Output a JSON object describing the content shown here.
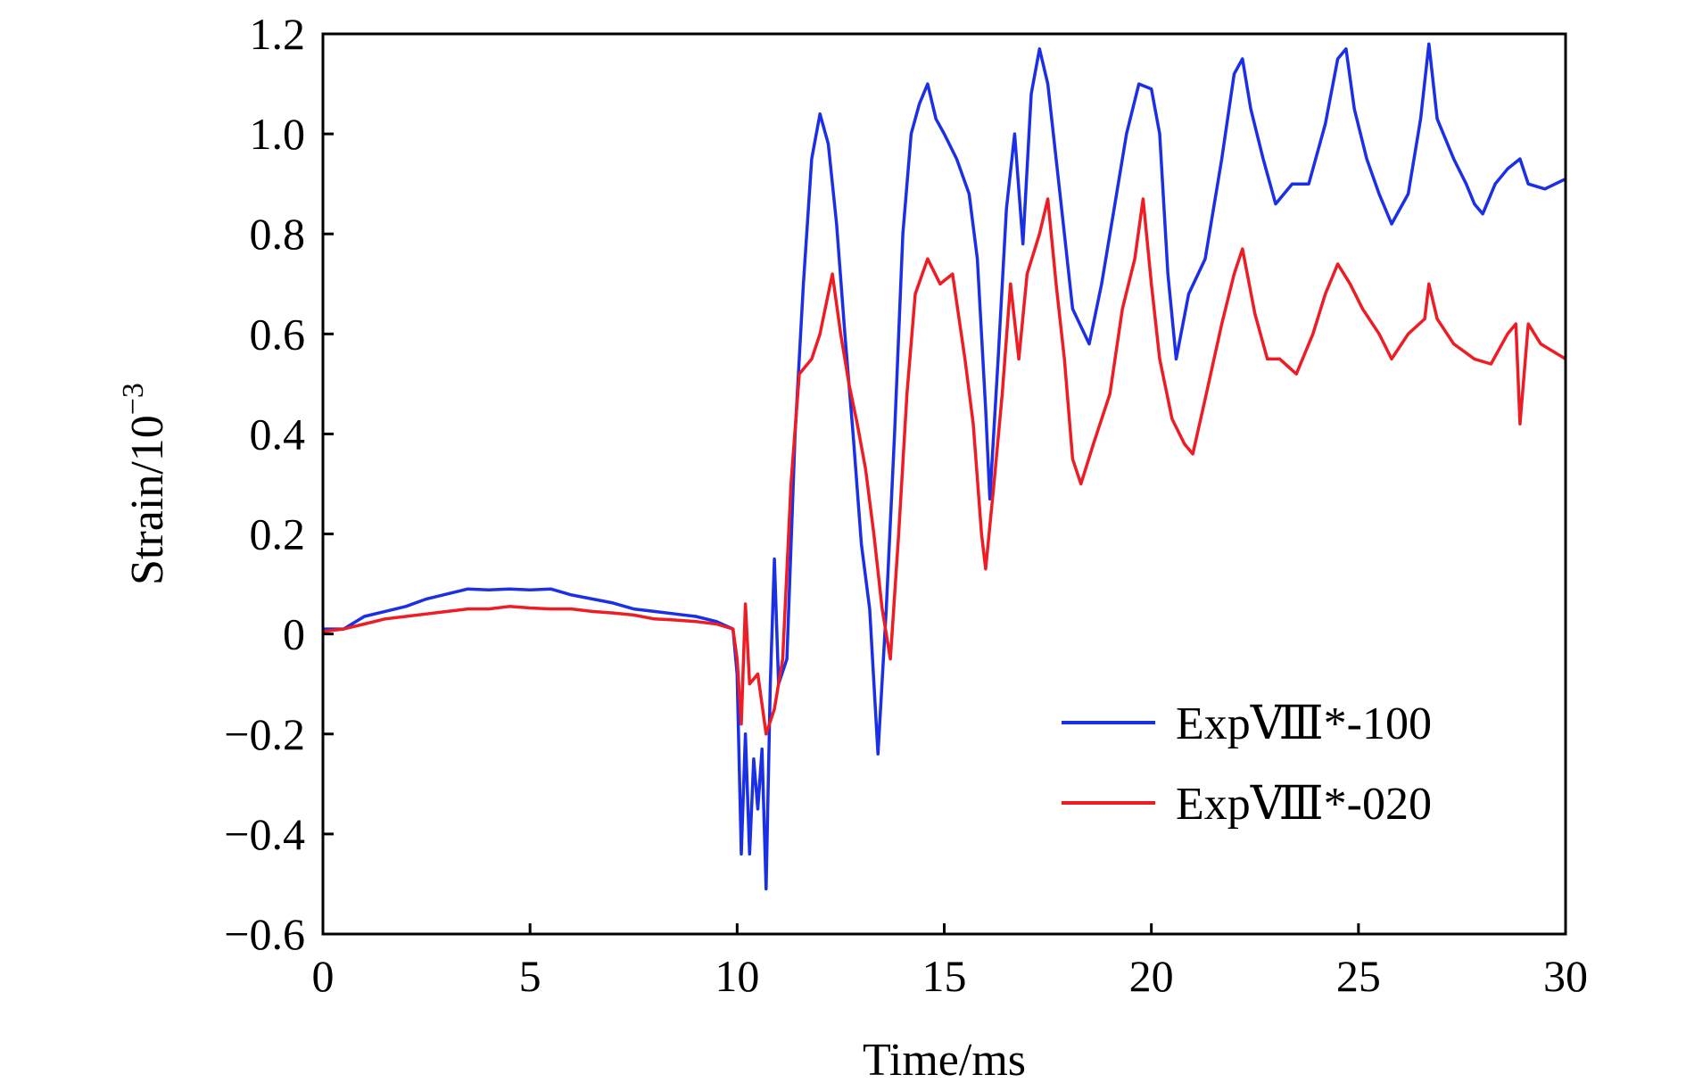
{
  "chart_data": {
    "type": "line",
    "title": "",
    "xlabel": "Time/ms",
    "ylabel": {
      "text": "Strain/10",
      "superscript": "−3"
    },
    "xlim": [
      0,
      30
    ],
    "ylim": [
      -0.6,
      1.2
    ],
    "xticks": [
      0,
      5,
      10,
      15,
      20,
      25,
      30
    ],
    "xtick_labels": [
      "0",
      "5",
      "10",
      "15",
      "20",
      "25",
      "30"
    ],
    "yticks": [
      -0.6,
      -0.4,
      -0.2,
      0,
      0.2,
      0.4,
      0.6,
      0.8,
      1.0,
      1.2
    ],
    "ytick_labels": [
      "−0.6",
      "−0.4",
      "−0.2",
      "0",
      "0.2",
      "0.4",
      "0.6",
      "0.8",
      "1.0",
      "1.2"
    ],
    "grid": false,
    "legend_position": "lower-right",
    "series": [
      {
        "name": "ExpⅧ*-100",
        "color": "#1a2fe6",
        "points": [
          [
            0,
            0.01
          ],
          [
            0.5,
            0.01
          ],
          [
            1,
            0.035
          ],
          [
            1.5,
            0.045
          ],
          [
            2,
            0.055
          ],
          [
            2.5,
            0.07
          ],
          [
            3,
            0.08
          ],
          [
            3.5,
            0.09
          ],
          [
            4,
            0.088
          ],
          [
            4.5,
            0.09
          ],
          [
            5,
            0.088
          ],
          [
            5.5,
            0.09
          ],
          [
            6,
            0.078
          ],
          [
            6.5,
            0.07
          ],
          [
            7,
            0.062
          ],
          [
            7.5,
            0.05
          ],
          [
            8,
            0.045
          ],
          [
            8.5,
            0.04
          ],
          [
            9,
            0.035
          ],
          [
            9.5,
            0.025
          ],
          [
            9.9,
            0.01
          ],
          [
            10.0,
            -0.08
          ],
          [
            10.1,
            -0.44
          ],
          [
            10.2,
            -0.2
          ],
          [
            10.3,
            -0.44
          ],
          [
            10.4,
            -0.25
          ],
          [
            10.5,
            -0.35
          ],
          [
            10.6,
            -0.23
          ],
          [
            10.7,
            -0.51
          ],
          [
            10.8,
            -0.1
          ],
          [
            10.9,
            0.15
          ],
          [
            11.0,
            -0.1
          ],
          [
            11.2,
            -0.05
          ],
          [
            11.4,
            0.4
          ],
          [
            11.6,
            0.7
          ],
          [
            11.8,
            0.95
          ],
          [
            12.0,
            1.04
          ],
          [
            12.2,
            0.98
          ],
          [
            12.4,
            0.82
          ],
          [
            12.6,
            0.6
          ],
          [
            12.8,
            0.4
          ],
          [
            13.0,
            0.18
          ],
          [
            13.2,
            0.05
          ],
          [
            13.4,
            -0.24
          ],
          [
            13.6,
            0.05
          ],
          [
            13.8,
            0.4
          ],
          [
            14.0,
            0.8
          ],
          [
            14.2,
            1.0
          ],
          [
            14.4,
            1.06
          ],
          [
            14.6,
            1.1
          ],
          [
            14.8,
            1.03
          ],
          [
            15.0,
            1.0
          ],
          [
            15.3,
            0.95
          ],
          [
            15.6,
            0.88
          ],
          [
            15.8,
            0.75
          ],
          [
            16.0,
            0.45
          ],
          [
            16.1,
            0.27
          ],
          [
            16.3,
            0.55
          ],
          [
            16.5,
            0.85
          ],
          [
            16.7,
            1.0
          ],
          [
            16.9,
            0.78
          ],
          [
            17.1,
            1.08
          ],
          [
            17.3,
            1.17
          ],
          [
            17.5,
            1.1
          ],
          [
            17.7,
            0.95
          ],
          [
            17.9,
            0.8
          ],
          [
            18.1,
            0.65
          ],
          [
            18.5,
            0.58
          ],
          [
            18.8,
            0.7
          ],
          [
            19.1,
            0.85
          ],
          [
            19.4,
            1.0
          ],
          [
            19.7,
            1.1
          ],
          [
            20.0,
            1.09
          ],
          [
            20.2,
            1.0
          ],
          [
            20.4,
            0.72
          ],
          [
            20.6,
            0.55
          ],
          [
            20.9,
            0.68
          ],
          [
            21.3,
            0.75
          ],
          [
            21.7,
            0.95
          ],
          [
            22.0,
            1.12
          ],
          [
            22.2,
            1.15
          ],
          [
            22.4,
            1.05
          ],
          [
            22.7,
            0.95
          ],
          [
            23.0,
            0.86
          ],
          [
            23.4,
            0.9
          ],
          [
            23.8,
            0.9
          ],
          [
            24.2,
            1.02
          ],
          [
            24.5,
            1.15
          ],
          [
            24.7,
            1.17
          ],
          [
            24.9,
            1.05
          ],
          [
            25.2,
            0.95
          ],
          [
            25.5,
            0.88
          ],
          [
            25.8,
            0.82
          ],
          [
            26.2,
            0.88
          ],
          [
            26.5,
            1.03
          ],
          [
            26.7,
            1.18
          ],
          [
            26.9,
            1.03
          ],
          [
            27.3,
            0.95
          ],
          [
            27.6,
            0.9
          ],
          [
            27.8,
            0.86
          ],
          [
            28.0,
            0.84
          ],
          [
            28.3,
            0.9
          ],
          [
            28.6,
            0.93
          ],
          [
            28.9,
            0.95
          ],
          [
            29.1,
            0.9
          ],
          [
            29.5,
            0.89
          ],
          [
            30.0,
            0.91
          ]
        ]
      },
      {
        "name": "ExpⅧ*-020",
        "color": "#ee1c24",
        "points": [
          [
            0,
            0.005
          ],
          [
            0.5,
            0.01
          ],
          [
            1,
            0.02
          ],
          [
            1.5,
            0.03
          ],
          [
            2,
            0.035
          ],
          [
            2.5,
            0.04
          ],
          [
            3,
            0.045
          ],
          [
            3.5,
            0.05
          ],
          [
            4,
            0.05
          ],
          [
            4.5,
            0.055
          ],
          [
            5,
            0.052
          ],
          [
            5.5,
            0.05
          ],
          [
            6,
            0.05
          ],
          [
            6.5,
            0.045
          ],
          [
            7,
            0.042
          ],
          [
            7.5,
            0.038
          ],
          [
            8,
            0.03
          ],
          [
            8.5,
            0.028
          ],
          [
            9,
            0.025
          ],
          [
            9.5,
            0.02
          ],
          [
            9.9,
            0.01
          ],
          [
            10.0,
            -0.05
          ],
          [
            10.1,
            -0.18
          ],
          [
            10.2,
            0.06
          ],
          [
            10.3,
            -0.1
          ],
          [
            10.5,
            -0.08
          ],
          [
            10.7,
            -0.2
          ],
          [
            10.9,
            -0.15
          ],
          [
            11.1,
            -0.05
          ],
          [
            11.3,
            0.3
          ],
          [
            11.5,
            0.52
          ],
          [
            11.8,
            0.55
          ],
          [
            12.0,
            0.6
          ],
          [
            12.3,
            0.72
          ],
          [
            12.5,
            0.6
          ],
          [
            12.7,
            0.5
          ],
          [
            12.9,
            0.42
          ],
          [
            13.1,
            0.33
          ],
          [
            13.3,
            0.2
          ],
          [
            13.5,
            0.05
          ],
          [
            13.7,
            -0.05
          ],
          [
            13.9,
            0.2
          ],
          [
            14.1,
            0.48
          ],
          [
            14.3,
            0.68
          ],
          [
            14.6,
            0.75
          ],
          [
            14.9,
            0.7
          ],
          [
            15.2,
            0.72
          ],
          [
            15.5,
            0.55
          ],
          [
            15.7,
            0.42
          ],
          [
            15.9,
            0.2
          ],
          [
            16.0,
            0.13
          ],
          [
            16.2,
            0.3
          ],
          [
            16.4,
            0.48
          ],
          [
            16.6,
            0.7
          ],
          [
            16.8,
            0.55
          ],
          [
            17.0,
            0.72
          ],
          [
            17.3,
            0.8
          ],
          [
            17.5,
            0.87
          ],
          [
            17.7,
            0.7
          ],
          [
            17.9,
            0.55
          ],
          [
            18.1,
            0.35
          ],
          [
            18.3,
            0.3
          ],
          [
            18.6,
            0.38
          ],
          [
            19.0,
            0.48
          ],
          [
            19.3,
            0.65
          ],
          [
            19.6,
            0.75
          ],
          [
            19.8,
            0.87
          ],
          [
            20.0,
            0.7
          ],
          [
            20.2,
            0.55
          ],
          [
            20.5,
            0.43
          ],
          [
            20.8,
            0.38
          ],
          [
            21.0,
            0.36
          ],
          [
            21.3,
            0.47
          ],
          [
            21.7,
            0.62
          ],
          [
            22.0,
            0.72
          ],
          [
            22.2,
            0.77
          ],
          [
            22.5,
            0.64
          ],
          [
            22.8,
            0.55
          ],
          [
            23.1,
            0.55
          ],
          [
            23.5,
            0.52
          ],
          [
            23.9,
            0.6
          ],
          [
            24.2,
            0.68
          ],
          [
            24.5,
            0.74
          ],
          [
            24.8,
            0.7
          ],
          [
            25.1,
            0.65
          ],
          [
            25.5,
            0.6
          ],
          [
            25.8,
            0.55
          ],
          [
            26.2,
            0.6
          ],
          [
            26.6,
            0.63
          ],
          [
            26.7,
            0.7
          ],
          [
            26.9,
            0.63
          ],
          [
            27.3,
            0.58
          ],
          [
            27.8,
            0.55
          ],
          [
            28.2,
            0.54
          ],
          [
            28.6,
            0.6
          ],
          [
            28.8,
            0.62
          ],
          [
            28.9,
            0.42
          ],
          [
            29.1,
            0.62
          ],
          [
            29.4,
            0.58
          ],
          [
            30.0,
            0.55
          ]
        ]
      }
    ]
  }
}
